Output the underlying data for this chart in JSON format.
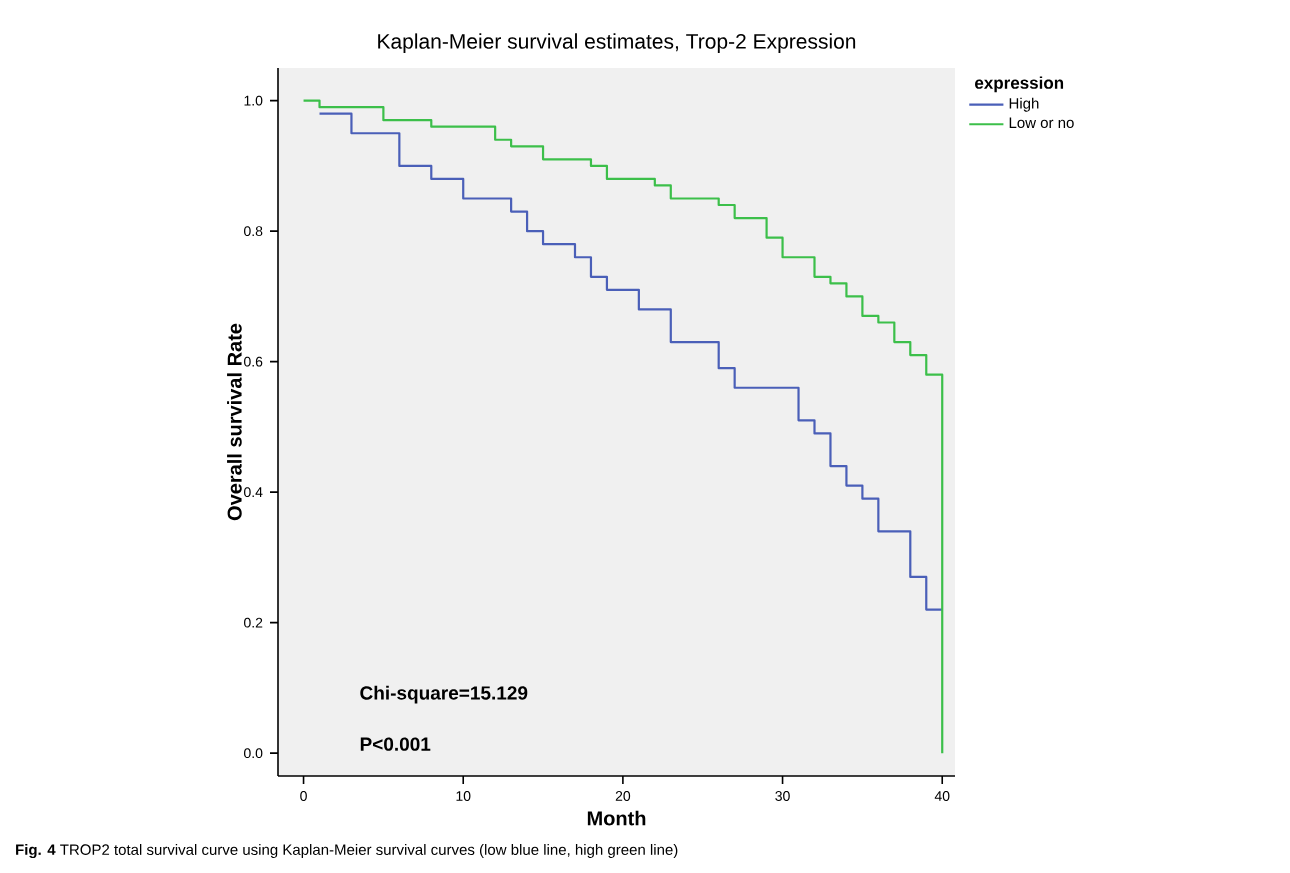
{
  "chart_data": {
    "type": "step",
    "title": "Kaplan-Meier survival estimates, Trop-2 Expression",
    "xlabel": "Month",
    "ylabel": "Overall survival Rate",
    "legend_title": "expression",
    "legend": "top right",
    "annotations": [
      "Chi-square=15.129",
      "P<0.001",
      "**Fig. 4** TROP2 total survival curve using Kaplan-Meier survival curves (low blue line, high green line)"
    ],
    "xlim": [
      -1.6,
      40.8
    ],
    "ylim": [
      -0.035,
      1.05
    ],
    "xticks": [
      0,
      10,
      20,
      30,
      40
    ],
    "yticks": [
      {
        "value": 0,
        "label": "0.0"
      },
      {
        "value": 0.2,
        "label": "0.2"
      },
      {
        "value": 0.4,
        "label": "0.4"
      },
      {
        "value": 0.6,
        "label": "0.6"
      },
      {
        "value": 0.8,
        "label": "0.8"
      },
      {
        "value": 1,
        "label": "1.0"
      }
    ],
    "grid": false,
    "line_style": "solid",
    "marker": "none",
    "series": [
      {
        "name": "High",
        "color": "#4a5fb8",
        "x": [
          1,
          3,
          6,
          8,
          10,
          13,
          14,
          15,
          17,
          18,
          19,
          21,
          23,
          26,
          27,
          31,
          32,
          33,
          34,
          35,
          36,
          38,
          39,
          40
        ],
        "values": [
          0.98,
          0.95,
          0.9,
          0.88,
          0.85,
          0.83,
          0.8,
          0.78,
          0.76,
          0.73,
          0.71,
          0.68,
          0.63,
          0.59,
          0.56,
          0.51,
          0.49,
          0.44,
          0.41,
          0.39,
          0.34,
          0.27,
          0.22,
          0.22
        ]
      },
      {
        "name": "Low or no",
        "color": "#3cbf4a",
        "x": [
          0,
          1,
          5,
          8,
          12,
          13,
          15,
          18,
          19,
          22,
          23,
          26,
          27,
          29,
          30,
          32,
          33,
          34,
          35,
          36,
          37,
          38,
          39,
          40
        ],
        "values": [
          1,
          0.99,
          0.97,
          0.96,
          0.94,
          0.93,
          0.91,
          0.9,
          0.88,
          0.87,
          0.85,
          0.84,
          0.82,
          0.79,
          0.76,
          0.73,
          0.72,
          0.7,
          0.67,
          0.66,
          0.63,
          0.61,
          0.58,
          0
        ]
      }
    ]
  }
}
